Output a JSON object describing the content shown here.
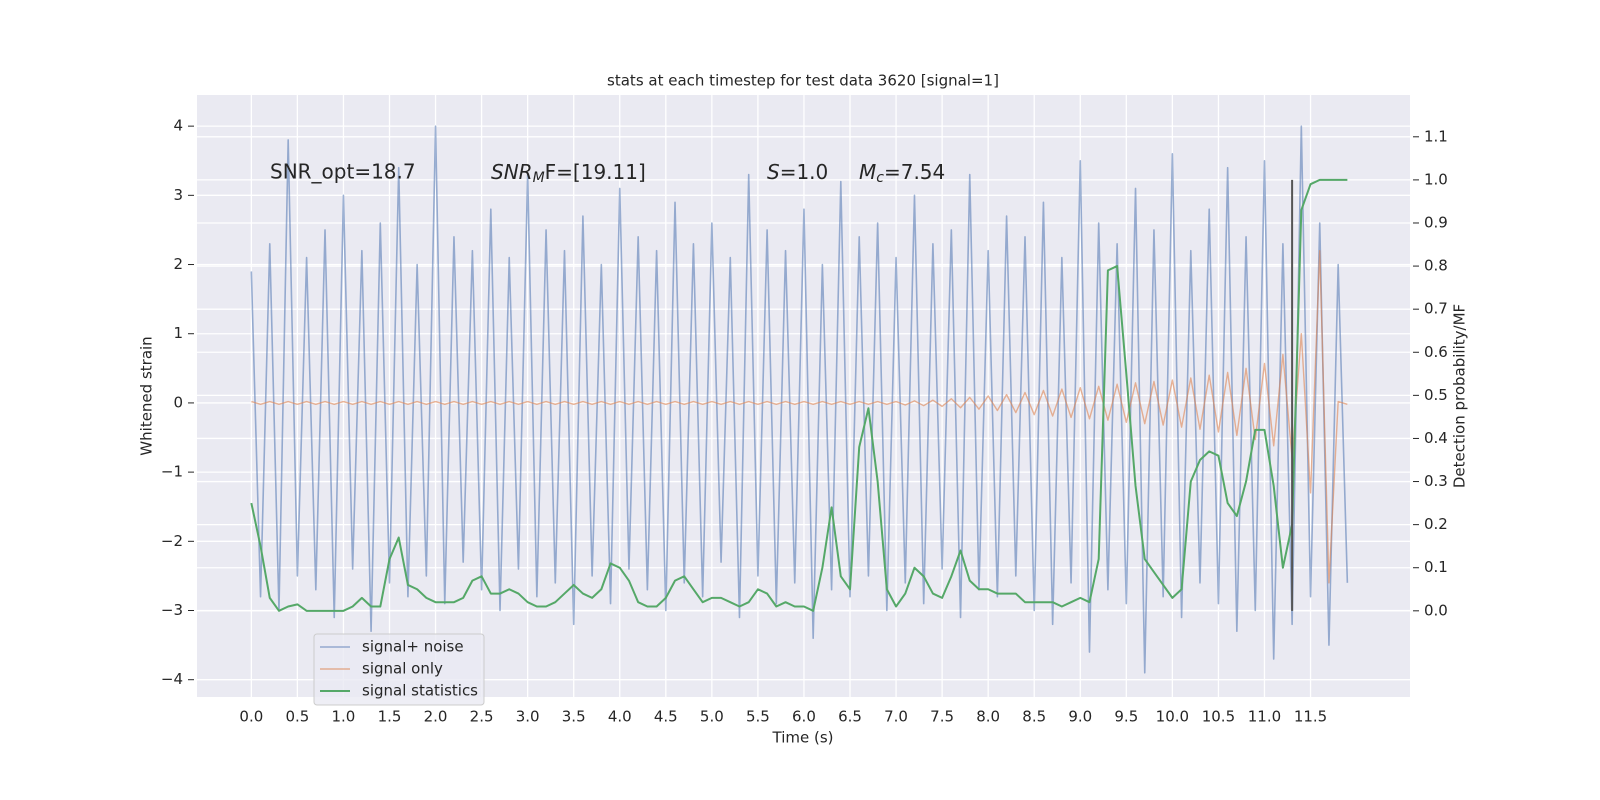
{
  "chart_data": {
    "type": "line",
    "title": "stats at each timestep for test data 3620 [signal=1]",
    "xlabel": "Time (s)",
    "ylabel": "Whitened strain",
    "y2label": "Detection probability/MF",
    "annotations": [
      {
        "text": "SNR_opt=18.7"
      },
      {
        "main": "SNR",
        "sub": "M",
        "rest": "F=[19.11]"
      },
      {
        "main": "S",
        "rest": "=1.0"
      },
      {
        "main": "M",
        "sub": "c",
        "rest": "=7.54"
      }
    ],
    "x": [
      0,
      0.1,
      0.2,
      0.3,
      0.4,
      0.5,
      0.6,
      0.7,
      0.8,
      0.9,
      1,
      1.1,
      1.2,
      1.3,
      1.4,
      1.5,
      1.6,
      1.7,
      1.8,
      1.9,
      2,
      2.1,
      2.2,
      2.3,
      2.4,
      2.5,
      2.6,
      2.7,
      2.8,
      2.9,
      3,
      3.1,
      3.2,
      3.3,
      3.4,
      3.5,
      3.6,
      3.7,
      3.8,
      3.9,
      4,
      4.1,
      4.2,
      4.3,
      4.4,
      4.5,
      4.6,
      4.7,
      4.8,
      4.9,
      5,
      5.1,
      5.2,
      5.3,
      5.4,
      5.5,
      5.6,
      5.7,
      5.8,
      5.9,
      6,
      6.1,
      6.2,
      6.3,
      6.4,
      6.5,
      6.6,
      6.7,
      6.8,
      6.9,
      7,
      7.1,
      7.2,
      7.3,
      7.4,
      7.5,
      7.6,
      7.7,
      7.8,
      7.9,
      8,
      8.1,
      8.2,
      8.3,
      8.4,
      8.5,
      8.6,
      8.7,
      8.8,
      8.9,
      9,
      9.1,
      9.2,
      9.3,
      9.4,
      9.5,
      9.6,
      9.7,
      9.8,
      9.9,
      10,
      10.1,
      10.2,
      10.3,
      10.4,
      10.5,
      10.6,
      10.7,
      10.8,
      10.9,
      11,
      11.1,
      11.2,
      11.3,
      11.4,
      11.5,
      11.6,
      11.7,
      11.8,
      11.9
    ],
    "series": [
      {
        "name": "signal+ noise",
        "color": "#4c72b0",
        "values": [
          1.9,
          -2.8,
          2.3,
          -3.0,
          3.8,
          -2.5,
          2.1,
          -2.7,
          2.5,
          -3.1,
          3.0,
          -2.4,
          2.2,
          -3.3,
          2.6,
          -2.6,
          3.4,
          -2.8,
          2.0,
          -2.5,
          4.0,
          -2.9,
          2.4,
          -2.3,
          2.2,
          -2.7,
          2.8,
          -3.0,
          2.1,
          -2.4,
          3.3,
          -2.8,
          2.5,
          -2.6,
          2.2,
          -3.2,
          2.7,
          -2.5,
          2.0,
          -2.9,
          3.1,
          -2.4,
          2.4,
          -2.7,
          2.2,
          -3.0,
          2.9,
          -2.6,
          2.3,
          -2.8,
          2.6,
          -2.3,
          2.1,
          -3.1,
          3.3,
          -2.5,
          2.5,
          -2.9,
          2.2,
          -2.6,
          2.8,
          -3.4,
          2.0,
          -2.7,
          3.2,
          -2.8,
          2.4,
          -2.5,
          2.6,
          -3.0,
          2.1,
          -2.6,
          3.0,
          -2.9,
          2.3,
          -2.4,
          2.5,
          -3.1,
          3.3,
          -2.7,
          2.2,
          -2.8,
          2.7,
          -2.5,
          2.4,
          -3.0,
          2.9,
          -3.2,
          2.1,
          -2.6,
          3.5,
          -3.6,
          2.6,
          -2.7,
          2.3,
          -2.9,
          3.1,
          -3.9,
          2.5,
          -2.8,
          3.6,
          -3.1,
          2.2,
          -2.6,
          2.8,
          -2.9,
          3.4,
          -3.3,
          2.4,
          -3.0,
          3.5,
          -3.7,
          2.3,
          -3.2,
          4.0,
          -2.8,
          2.6,
          -3.5,
          2.0,
          -2.6
        ]
      },
      {
        "name": "signal only",
        "color": "#dd8452",
        "values": [
          0.02,
          -0.02,
          0.02,
          -0.02,
          0.02,
          -0.02,
          0.02,
          -0.02,
          0.02,
          -0.02,
          0.02,
          -0.02,
          0.02,
          -0.02,
          0.02,
          -0.02,
          0.02,
          -0.02,
          0.02,
          -0.02,
          0.02,
          -0.02,
          0.02,
          -0.02,
          0.02,
          -0.02,
          0.02,
          -0.02,
          0.02,
          -0.02,
          0.02,
          -0.02,
          0.02,
          -0.02,
          0.02,
          -0.02,
          0.02,
          -0.02,
          0.02,
          -0.02,
          0.02,
          -0.02,
          0.02,
          -0.02,
          0.02,
          -0.02,
          0.02,
          -0.02,
          0.02,
          -0.02,
          0.02,
          -0.02,
          0.02,
          -0.02,
          0.02,
          -0.02,
          0.02,
          -0.02,
          0.02,
          -0.02,
          0.02,
          -0.02,
          0.02,
          -0.02,
          0.02,
          -0.02,
          0.02,
          -0.02,
          0.02,
          -0.02,
          0.02,
          -0.03,
          0.03,
          -0.04,
          0.04,
          -0.05,
          0.06,
          -0.07,
          0.08,
          -0.09,
          0.1,
          -0.11,
          0.12,
          -0.14,
          0.15,
          -0.17,
          0.18,
          -0.19,
          0.2,
          -0.21,
          0.22,
          -0.23,
          0.24,
          -0.25,
          0.27,
          -0.28,
          0.29,
          -0.3,
          0.31,
          -0.32,
          0.33,
          -0.35,
          0.36,
          -0.38,
          0.4,
          -0.42,
          0.44,
          -0.47,
          0.5,
          -0.53,
          0.57,
          -0.62,
          0.7,
          -0.8,
          1.0,
          -1.3,
          2.2,
          -2.6,
          0.02,
          -0.02
        ]
      },
      {
        "name": "signal statistics",
        "color": "#55a868",
        "axis": "y2",
        "values": [
          0.25,
          0.15,
          0.03,
          0.0,
          0.01,
          0.015,
          0.0,
          0.0,
          0.0,
          0.0,
          0.0,
          0.01,
          0.03,
          0.01,
          0.01,
          0.12,
          0.17,
          0.06,
          0.05,
          0.03,
          0.02,
          0.02,
          0.02,
          0.03,
          0.07,
          0.08,
          0.04,
          0.04,
          0.05,
          0.04,
          0.02,
          0.01,
          0.01,
          0.02,
          0.04,
          0.06,
          0.04,
          0.03,
          0.05,
          0.11,
          0.1,
          0.07,
          0.02,
          0.01,
          0.01,
          0.03,
          0.07,
          0.08,
          0.05,
          0.02,
          0.03,
          0.03,
          0.02,
          0.01,
          0.02,
          0.05,
          0.04,
          0.01,
          0.02,
          0.01,
          0.01,
          0.0,
          0.1,
          0.24,
          0.08,
          0.05,
          0.38,
          0.47,
          0.3,
          0.05,
          0.01,
          0.04,
          0.1,
          0.08,
          0.04,
          0.03,
          0.08,
          0.14,
          0.07,
          0.05,
          0.05,
          0.04,
          0.04,
          0.04,
          0.02,
          0.02,
          0.02,
          0.02,
          0.01,
          0.02,
          0.03,
          0.02,
          0.12,
          0.79,
          0.8,
          0.55,
          0.29,
          0.12,
          0.09,
          0.06,
          0.03,
          0.05,
          0.3,
          0.35,
          0.37,
          0.36,
          0.25,
          0.22,
          0.3,
          0.42,
          0.42,
          0.29,
          0.1,
          0.2,
          0.93,
          0.99,
          1.0,
          1.0,
          1.0,
          1.0
        ]
      }
    ],
    "vline_x": 11.3,
    "vline_color": "#555555",
    "xlim": [
      -0.59,
      12.58
    ],
    "ylim": [
      -4.25,
      4.45
    ],
    "y2lim": [
      -0.2,
      1.197
    ],
    "xticks": [
      {
        "value": 0,
        "label": "0.0"
      },
      0.5,
      {
        "value": 1,
        "label": "1.0"
      },
      1.5,
      {
        "value": 2,
        "label": "2.0"
      },
      2.5,
      {
        "value": 3,
        "label": "3.0"
      },
      3.5,
      {
        "value": 4,
        "label": "4.0"
      },
      4.5,
      {
        "value": 5,
        "label": "5.0"
      },
      5.5,
      {
        "value": 6,
        "label": "6.0"
      },
      6.5,
      {
        "value": 7,
        "label": "7.0"
      },
      7.5,
      {
        "value": 8,
        "label": "8.0"
      },
      8.5,
      {
        "value": 9,
        "label": "9.0"
      },
      9.5,
      {
        "value": 10,
        "label": "10.0"
      },
      10.5,
      {
        "value": 11,
        "label": "11.0"
      },
      11.5
    ],
    "yticks": [
      {
        "value": -4,
        "label": "−4"
      },
      {
        "value": -3,
        "label": "−3"
      },
      {
        "value": -2,
        "label": "−2"
      },
      {
        "value": -1,
        "label": "−1"
      },
      0,
      1,
      2,
      3,
      4
    ],
    "y2ticks": [
      {
        "value": 0,
        "label": "0.0"
      },
      0.1,
      0.2,
      0.3,
      0.4,
      0.5,
      0.6,
      0.7,
      0.8,
      0.9,
      {
        "value": 1,
        "label": "1.0"
      },
      1.1
    ],
    "grid": true,
    "legend": "lower left"
  }
}
